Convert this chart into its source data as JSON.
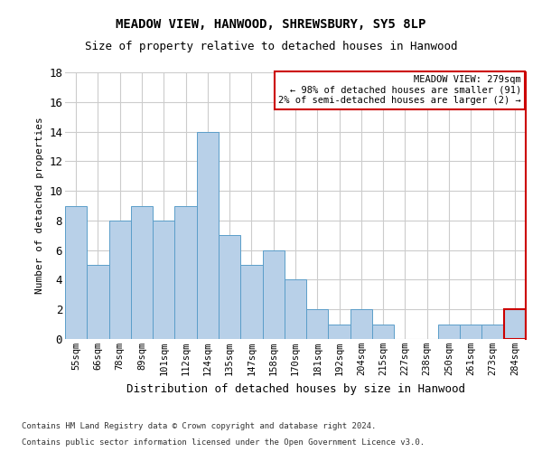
{
  "title": "MEADOW VIEW, HANWOOD, SHREWSBURY, SY5 8LP",
  "subtitle": "Size of property relative to detached houses in Hanwood",
  "xlabel": "Distribution of detached houses by size in Hanwood",
  "ylabel": "Number of detached properties",
  "footnote1": "Contains HM Land Registry data © Crown copyright and database right 2024.",
  "footnote2": "Contains public sector information licensed under the Open Government Licence v3.0.",
  "categories": [
    "55sqm",
    "66sqm",
    "78sqm",
    "89sqm",
    "101sqm",
    "112sqm",
    "124sqm",
    "135sqm",
    "147sqm",
    "158sqm",
    "170sqm",
    "181sqm",
    "192sqm",
    "204sqm",
    "215sqm",
    "227sqm",
    "238sqm",
    "250sqm",
    "261sqm",
    "273sqm",
    "284sqm"
  ],
  "values": [
    9,
    5,
    8,
    9,
    8,
    9,
    14,
    7,
    5,
    6,
    4,
    2,
    1,
    2,
    1,
    0,
    0,
    1,
    1,
    1,
    2
  ],
  "bar_color": "#b8d0e8",
  "bar_edge_color": "#5b9ec9",
  "highlight_bar_index": 20,
  "highlight_bar_edge_color": "#cc0000",
  "annotation_title": "MEADOW VIEW: 279sqm",
  "annotation_line1": "← 98% of detached houses are smaller (91)",
  "annotation_line2": "2% of semi-detached houses are larger (2) →",
  "annotation_box_color": "#cc0000",
  "ylim": [
    0,
    18
  ],
  "yticks": [
    0,
    2,
    4,
    6,
    8,
    10,
    12,
    14,
    16,
    18
  ],
  "background_color": "#ffffff",
  "grid_color": "#cccccc",
  "title_fontsize": 10,
  "subtitle_fontsize": 9
}
